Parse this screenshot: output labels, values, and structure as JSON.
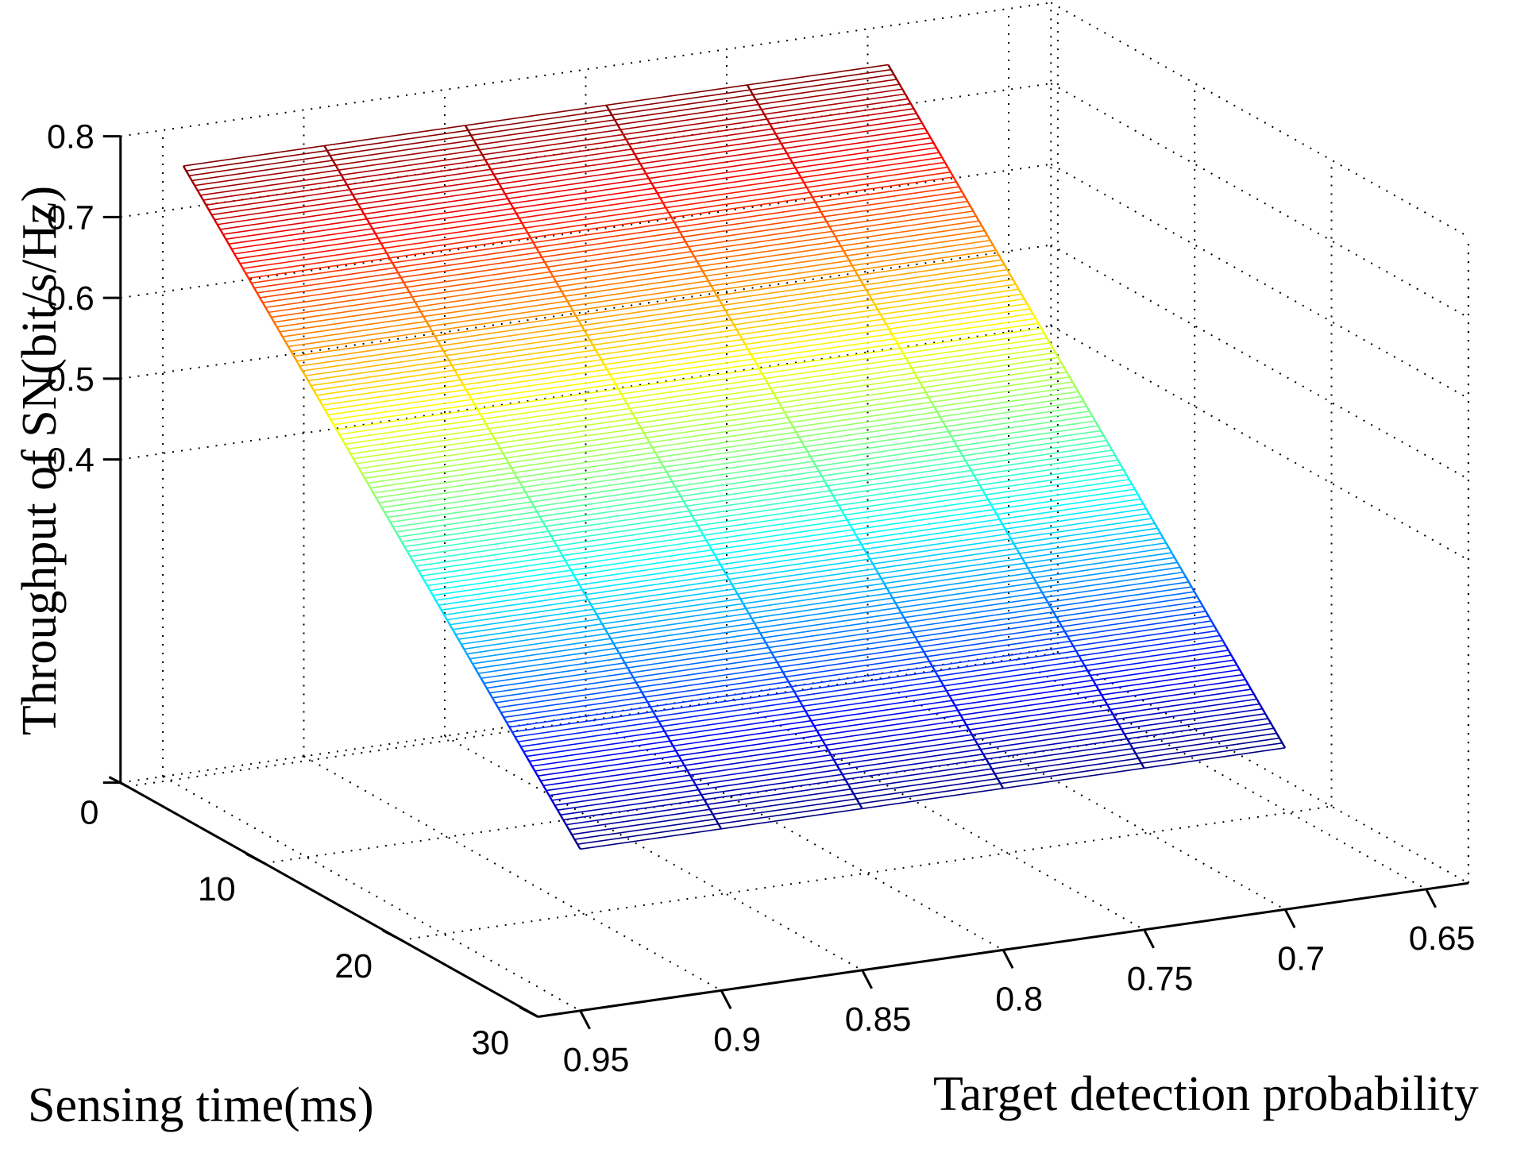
{
  "chart_data": {
    "type": "surface",
    "title": "",
    "xlabel": "Sensing time(ms)",
    "ylabel": "Target detection probability",
    "zlabel": "Throughput of SN(bit/s/Hz)",
    "x_ticks": [
      "0",
      "10",
      "20",
      "30"
    ],
    "y_ticks": [
      "0.95",
      "0.9",
      "0.85",
      "0.8",
      "0.75",
      "0.7",
      "0.65"
    ],
    "z_ticks": [
      "0.4",
      "0.5",
      "0.6",
      "0.7",
      "0.8"
    ],
    "xlim": [
      0,
      30
    ],
    "ylim": [
      0.6,
      1.0
    ],
    "zlim": [
      0.3,
      0.8
    ],
    "grid": true,
    "colormap": "jet",
    "surface_x": [
      1,
      30
    ],
    "surface_y": [
      0.95,
      0.9,
      0.85,
      0.8,
      0.75,
      0.7
    ],
    "surface_z_at_x": [
      0.77,
      0.2
    ],
    "mesh_rows": 140,
    "colors": {
      "wire_dark": "#7f0000",
      "wire_light": "#00007f"
    }
  }
}
